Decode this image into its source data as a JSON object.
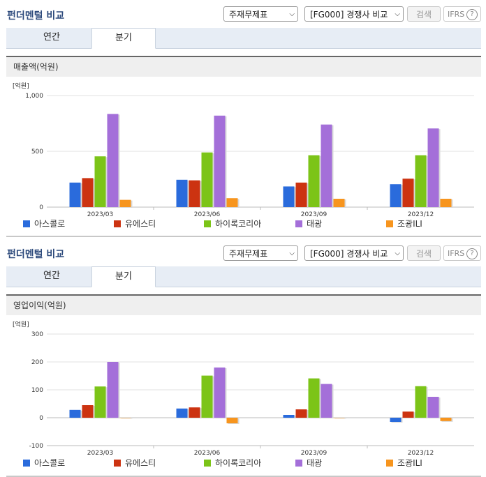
{
  "colors": {
    "accent_title": "#2d4a7c",
    "series": [
      "#2a6bdc",
      "#cc3311",
      "#7cc418",
      "#a46fd9",
      "#f7951e"
    ]
  },
  "panels": [
    {
      "title": "펀더멘털 비교",
      "select1": "주재무제표",
      "select2": "[FG000] 경쟁사 비교",
      "search_label": "검색",
      "ifrs_label": "IFRS",
      "help_icon": "?",
      "tabs": [
        {
          "label": "연간"
        },
        {
          "label": "분기"
        }
      ],
      "active_tab": "분기",
      "chart_title": "매출액(억원)",
      "legend": [
        "아스콜로",
        "유에스티",
        "하이록코리아",
        "태광",
        "조광ILI"
      ]
    },
    {
      "title": "펀더멘털 비교",
      "select1": "주재무제표",
      "select2": "[FG000] 경쟁사 비교",
      "search_label": "검색",
      "ifrs_label": "IFRS",
      "help_icon": "?",
      "tabs": [
        {
          "label": "연간"
        },
        {
          "label": "분기"
        }
      ],
      "active_tab": "분기",
      "chart_title": "영업이익(억원)",
      "legend": [
        "아스콜로",
        "유에스티",
        "하이록코리아",
        "태광",
        "조광ILI"
      ]
    }
  ],
  "chart_data": [
    {
      "type": "bar",
      "ylabel": "[억원]",
      "categories": [
        "2023/03",
        "2023/06",
        "2023/09",
        "2023/12"
      ],
      "ylim": [
        0,
        1000
      ],
      "yticks": [
        "0",
        "500",
        "1,000"
      ],
      "ytick_values": [
        0,
        500,
        1000
      ],
      "series": [
        {
          "name": "아스콜로",
          "values": [
            220,
            245,
            185,
            205
          ]
        },
        {
          "name": "유에스티",
          "values": [
            260,
            240,
            220,
            255
          ]
        },
        {
          "name": "하이록코리아",
          "values": [
            455,
            490,
            465,
            465
          ]
        },
        {
          "name": "태광",
          "values": [
            835,
            820,
            740,
            705
          ]
        },
        {
          "name": "조광ILI",
          "values": [
            65,
            80,
            75,
            75
          ]
        }
      ]
    },
    {
      "type": "bar",
      "ylabel": "[억원]",
      "categories": [
        "2023/03",
        "2023/06",
        "2023/09",
        "2023/12"
      ],
      "ylim": [
        -100,
        300
      ],
      "yticks": [
        "-100",
        "0",
        "100",
        "200",
        "300"
      ],
      "ytick_values": [
        -100,
        0,
        100,
        200,
        300
      ],
      "series": [
        {
          "name": "아스콜로",
          "values": [
            28,
            33,
            10,
            -15
          ]
        },
        {
          "name": "유에스티",
          "values": [
            45,
            37,
            30,
            22
          ]
        },
        {
          "name": "하이록코리아",
          "values": [
            112,
            151,
            141,
            113
          ]
        },
        {
          "name": "태광",
          "values": [
            200,
            180,
            121,
            75
          ]
        },
        {
          "name": "조광ILI",
          "values": [
            0,
            -20,
            0,
            -12
          ]
        }
      ]
    }
  ]
}
